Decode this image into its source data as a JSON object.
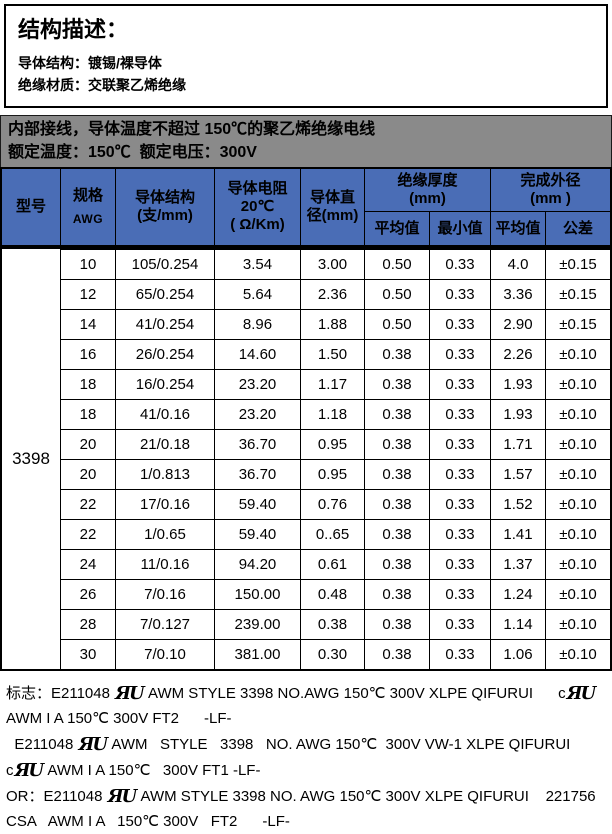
{
  "colors": {
    "header_blue": "#4a6db6",
    "band_gray": "#8a8a8a"
  },
  "structure": {
    "title": "结构描述：",
    "conductor": "导体结构：镀锡/裸导体",
    "insulation": "绝缘材质：交联聚乙烯绝缘"
  },
  "band": {
    "line1": "内部接线，导体温度不超过 150℃的聚乙烯绝缘电线",
    "line2": "额定温度：150℃  额定电压：300V"
  },
  "table": {
    "header": {
      "model": "型号",
      "spec": [
        "规格",
        "AWG"
      ],
      "conductor": [
        "导体结构",
        "(支/mm)"
      ],
      "resistance": [
        "导体电阻",
        "20℃",
        "( Ω/Km)"
      ],
      "diameter": [
        "导体直",
        "径(mm)"
      ],
      "insulation": [
        "绝缘厚度",
        "(mm)"
      ],
      "od": [
        "完成外径",
        "(mm )"
      ],
      "avg": "平均值",
      "min": "最小值",
      "avg2": "平均值",
      "tolerance": "公差"
    },
    "model_value": "3398",
    "rows": [
      [
        "10",
        "105/0.254",
        "3.54",
        "3.00",
        "0.50",
        "0.33",
        "4.0",
        "±0.15"
      ],
      [
        "12",
        "65/0.254",
        "5.64",
        "2.36",
        "0.50",
        "0.33",
        "3.36",
        "±0.15"
      ],
      [
        "14",
        "41/0.254",
        "8.96",
        "1.88",
        "0.50",
        "0.33",
        "2.90",
        "±0.15"
      ],
      [
        "16",
        "26/0.254",
        "14.60",
        "1.50",
        "0.38",
        "0.33",
        "2.26",
        "±0.10"
      ],
      [
        "18",
        "16/0.254",
        "23.20",
        "1.17",
        "0.38",
        "0.33",
        "1.93",
        "±0.10"
      ],
      [
        "18",
        "41/0.16",
        "23.20",
        "1.18",
        "0.38",
        "0.33",
        "1.93",
        "±0.10"
      ],
      [
        "20",
        "21/0.18",
        "36.70",
        "0.95",
        "0.38",
        "0.33",
        "1.71",
        "±0.10"
      ],
      [
        "20",
        "1/0.813",
        "36.70",
        "0.95",
        "0.38",
        "0.33",
        "1.57",
        "±0.10"
      ],
      [
        "22",
        "17/0.16",
        "59.40",
        "0.76",
        "0.38",
        "0.33",
        "1.52",
        "±0.10"
      ],
      [
        "22",
        "1/0.65",
        "59.40",
        "0..65",
        "0.38",
        "0.33",
        "1.41",
        "±0.10"
      ],
      [
        "24",
        "11/0.16",
        "94.20",
        "0.61",
        "0.38",
        "0.33",
        "1.37",
        "±0.10"
      ],
      [
        "26",
        "7/0.16",
        "150.00",
        "0.48",
        "0.38",
        "0.33",
        "1.24",
        "±0.10"
      ],
      [
        "28",
        "7/0.127",
        "239.00",
        "0.38",
        "0.38",
        "0.33",
        "1.14",
        "±0.10"
      ],
      [
        "30",
        "7/0.10",
        "381.00",
        "0.30",
        "0.38",
        "0.33",
        "1.06",
        "±0.10"
      ]
    ]
  },
  "footer": {
    "ul_mark_glyph": "ЯU",
    "lines": [
      {
        "segments": [
          {
            "t": "text",
            "v": "标志：E211048 "
          },
          {
            "t": "ul"
          },
          {
            "t": "text",
            "v": " AWM STYLE 3398 NO.AWG 150℃ 300V XLPE QIFURUI      c"
          },
          {
            "t": "ul"
          }
        ]
      },
      {
        "segments": [
          {
            "t": "text",
            "v": "AWM I A 150℃ 300V FT2      -LF-"
          }
        ]
      },
      {
        "segments": [
          {
            "t": "text",
            "v": "  E211048 "
          },
          {
            "t": "ul"
          },
          {
            "t": "text",
            "v": " AWM   STYLE   3398   NO. AWG 150℃  300V VW-1 XLPE QIFURUI"
          }
        ]
      },
      {
        "segments": [
          {
            "t": "text",
            "v": "c"
          },
          {
            "t": "ul"
          },
          {
            "t": "text",
            "v": " AWM I A 150℃   300V FT1 -LF-"
          }
        ]
      },
      {
        "segments": [
          {
            "t": "text",
            "v": "OR：E211048 "
          },
          {
            "t": "ul"
          },
          {
            "t": "text",
            "v": " AWM STYLE 3398 NO. AWG 150℃ 300V XLPE QIFURUI    221756"
          }
        ]
      },
      {
        "segments": [
          {
            "t": "text",
            "v": "CSA   AWM I A   150℃ 300V   FT2      -LF-"
          }
        ]
      }
    ]
  }
}
